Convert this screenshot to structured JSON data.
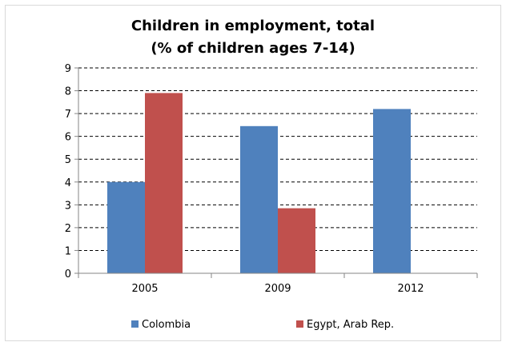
{
  "chart_data": {
    "type": "bar",
    "title_lines": [
      "Children in employment, total",
      "(% of children ages 7-14)"
    ],
    "categories": [
      "2005",
      "2009",
      "2012"
    ],
    "series": [
      {
        "name": "Colombia",
        "color": "#4f81bd",
        "values": [
          4.0,
          6.45,
          7.2
        ]
      },
      {
        "name": "Egypt, Arab Rep.",
        "color": "#c0504d",
        "values": [
          7.9,
          2.85,
          null
        ]
      }
    ],
    "ylim": [
      0,
      9
    ],
    "y_ticks": [
      0,
      1,
      2,
      3,
      4,
      5,
      6,
      7,
      8,
      9
    ],
    "grid": true,
    "legend_position": "bottom"
  }
}
